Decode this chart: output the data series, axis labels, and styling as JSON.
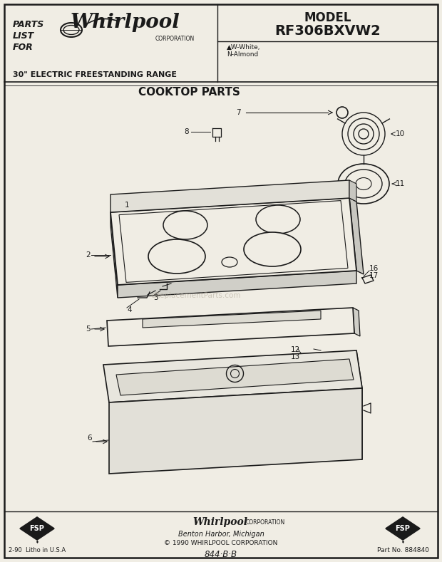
{
  "title": "COOKTOP PARTS",
  "model": "RF306BXVW2",
  "model_label": "MODEL",
  "range_desc": "30\" ELECTRIC FREESTANDING RANGE",
  "colors_note": "▲W-White,\nN-Almond",
  "footer_company": "Whirlpool",
  "footer_corp": "CORPORATION",
  "footer_city": "Benton Harbor, Michigan",
  "footer_copyright": "© 1990 WHIRLPOOL CORPORATION",
  "footer_code": "844·B·B",
  "footer_left": "2-90  Litho in U.S.A",
  "footer_right": "Part No. 884840",
  "bg_color": "#f0ede4",
  "line_color": "#1a1a1a",
  "watermark": "eReplacementParts.com"
}
